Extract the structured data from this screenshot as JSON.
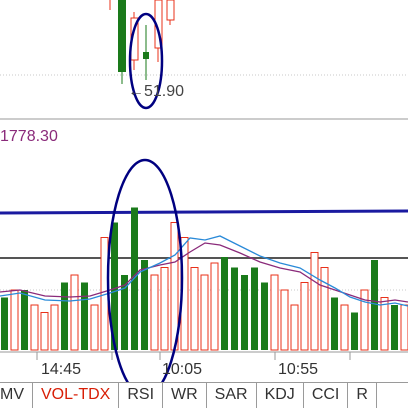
{
  "price_annotation": "←51.90",
  "volume_reading": "1778.30",
  "time_axis": {
    "ticks": [
      "14:45",
      "10:05",
      "10:55"
    ]
  },
  "indicator_tabs": [
    {
      "label": "MV",
      "active": false
    },
    {
      "label": "VOL-TDX",
      "active": true
    },
    {
      "label": "RSI",
      "active": false
    },
    {
      "label": "WR",
      "active": false
    },
    {
      "label": "SAR",
      "active": false
    },
    {
      "label": "KDJ",
      "active": false
    },
    {
      "label": "CCI",
      "active": false
    },
    {
      "label": "R",
      "active": false
    }
  ],
  "colors": {
    "up": "#e8311a",
    "down": "#1a7a1a",
    "annotation": "#000080",
    "ma_purple": "#8a2a7a",
    "ma_blue": "#2a8ad8",
    "reference_line": "#1a1aa0",
    "grid": "#c8c8c8"
  },
  "volume_bars": [
    {
      "dir": "down",
      "level": 0.35
    },
    {
      "dir": "up",
      "level": 0.4
    },
    {
      "dir": "down",
      "level": 0.4
    },
    {
      "dir": "up",
      "level": 0.3
    },
    {
      "dir": "up",
      "level": 0.25
    },
    {
      "dir": "up",
      "level": 0.3
    },
    {
      "dir": "down",
      "level": 0.45
    },
    {
      "dir": "up",
      "level": 0.5
    },
    {
      "dir": "down",
      "level": 0.45
    },
    {
      "dir": "up",
      "level": 0.3
    },
    {
      "dir": "up",
      "level": 0.75
    },
    {
      "dir": "down",
      "level": 0.85
    },
    {
      "dir": "down",
      "level": 0.5
    },
    {
      "dir": "down",
      "level": 0.95
    },
    {
      "dir": "down",
      "level": 0.6
    },
    {
      "dir": "up",
      "level": 0.5
    },
    {
      "dir": "up",
      "level": 0.55
    },
    {
      "dir": "up",
      "level": 0.85
    },
    {
      "dir": "up",
      "level": 0.75
    },
    {
      "dir": "up",
      "level": 0.55
    },
    {
      "dir": "up",
      "level": 0.5
    },
    {
      "dir": "up",
      "level": 0.58
    },
    {
      "dir": "down",
      "level": 0.62
    },
    {
      "dir": "down",
      "level": 0.55
    },
    {
      "dir": "down",
      "level": 0.5
    },
    {
      "dir": "down",
      "level": 0.55
    },
    {
      "dir": "down",
      "level": 0.45
    },
    {
      "dir": "up",
      "level": 0.5
    },
    {
      "dir": "up",
      "level": 0.4
    },
    {
      "dir": "up",
      "level": 0.3
    },
    {
      "dir": "up",
      "level": 0.45
    },
    {
      "dir": "up",
      "level": 0.65
    },
    {
      "dir": "up",
      "level": 0.55
    },
    {
      "dir": "down",
      "level": 0.35
    },
    {
      "dir": "up",
      "level": 0.3
    },
    {
      "dir": "down",
      "level": 0.25
    },
    {
      "dir": "up",
      "level": 0.4
    },
    {
      "dir": "down",
      "level": 0.6
    },
    {
      "dir": "up",
      "level": 0.35
    },
    {
      "dir": "down",
      "level": 0.3
    },
    {
      "dir": "up",
      "level": 0.3
    }
  ]
}
